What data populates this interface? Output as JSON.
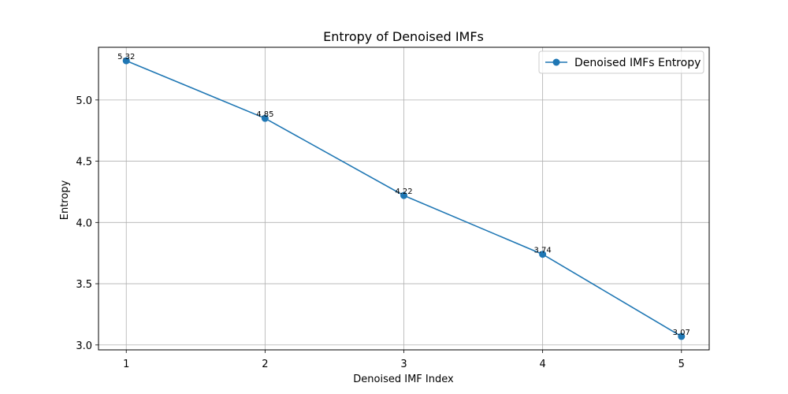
{
  "chart_data": {
    "type": "line",
    "title": "Entropy of Denoised IMFs",
    "xlabel": "Denoised IMF Index",
    "ylabel": "Entropy",
    "x": [
      1,
      2,
      3,
      4,
      5
    ],
    "series": [
      {
        "name": "Denoised IMFs Entropy",
        "values": [
          5.32,
          4.85,
          4.22,
          3.74,
          3.07
        ],
        "data_labels": [
          "5.32",
          "4.85",
          "4.22",
          "3.74",
          "3.07"
        ],
        "color": "#1f77b4",
        "marker": "circle"
      }
    ],
    "xticks": [
      "1",
      "2",
      "3",
      "4",
      "5"
    ],
    "yticks": [
      "3.0",
      "3.5",
      "4.0",
      "4.5",
      "5.0"
    ],
    "xlim": [
      0.8,
      5.2
    ],
    "ylim": [
      2.96,
      5.43
    ],
    "grid": true,
    "legend_position": "top-right"
  }
}
